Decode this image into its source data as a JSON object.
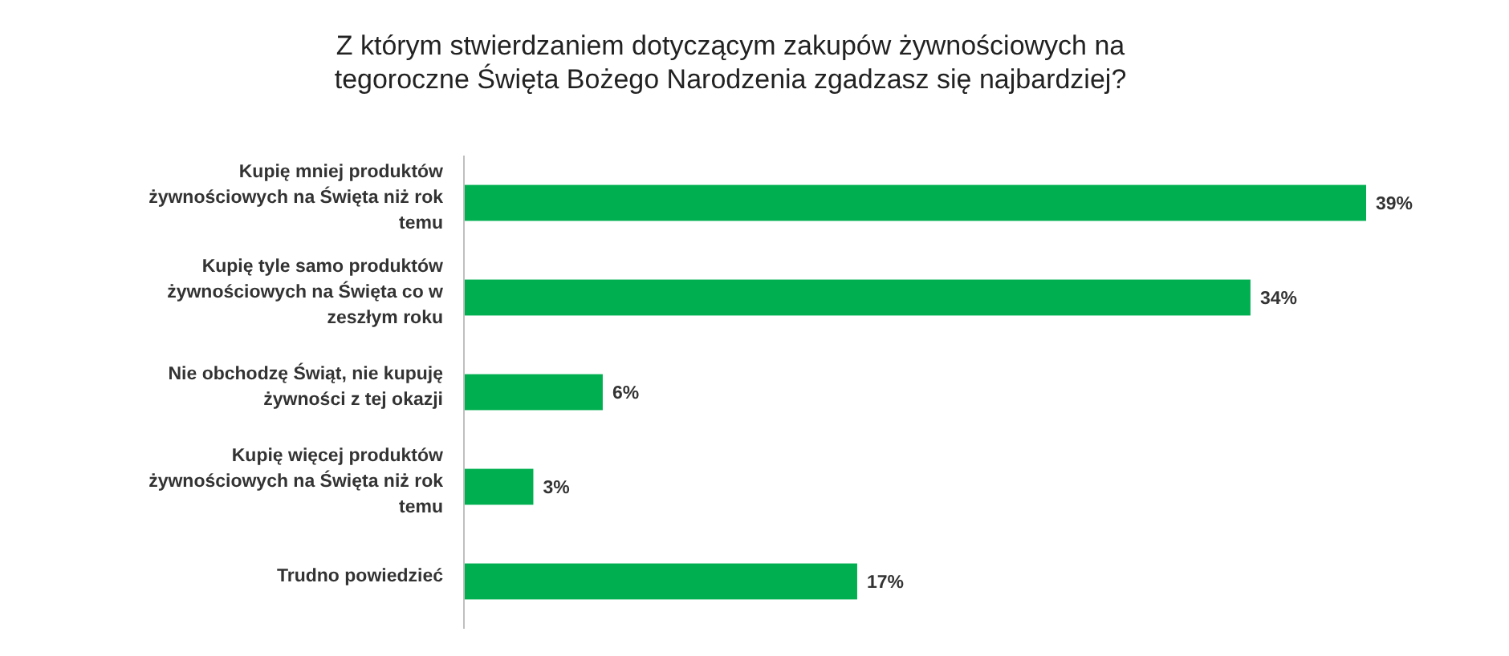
{
  "chart_data": {
    "type": "bar",
    "orientation": "horizontal",
    "title": "Z którym stwierdzaniem dotyczącym zakupów żywnościowych na tegoroczne Święta Bożego Narodzenia zgadzasz się najbardziej?",
    "categories": [
      "Kupię mniej produktów żywnościowych na Święta niż rok temu",
      "Kupię tyle samo produktów żywnościowych na Święta co w zeszłym roku",
      "Nie obchodzę Świąt, nie kupuję żywności z tej okazji",
      "Kupię więcej produktów żywnościowych na Święta niż rok temu",
      "Trudno powiedzieć"
    ],
    "values": [
      39,
      34,
      6,
      3,
      17
    ],
    "value_labels": [
      "39%",
      "34%",
      "6%",
      "3%",
      "17%"
    ],
    "color": "#00b050"
  }
}
